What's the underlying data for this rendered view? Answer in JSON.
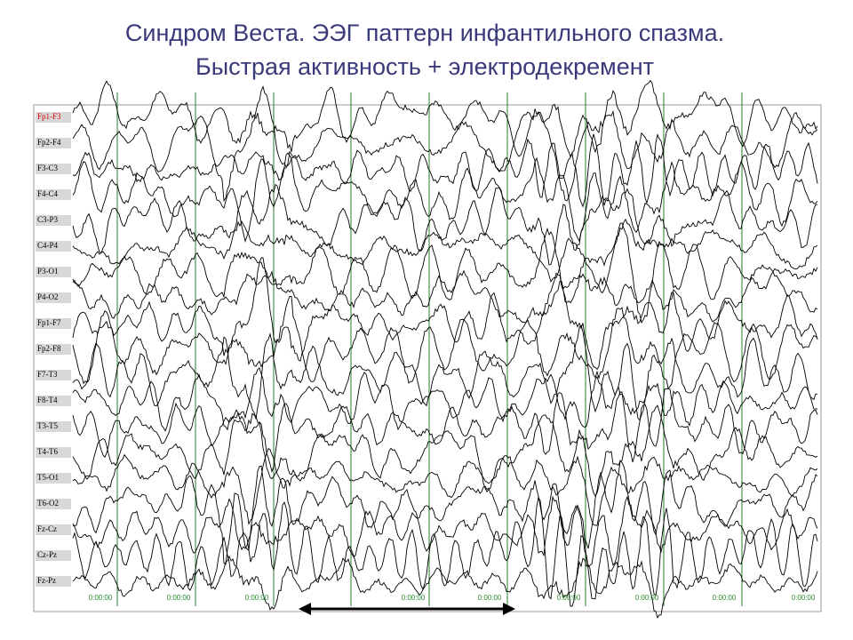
{
  "header": {
    "title_lines": [
      "Синдром Веста. ЭЭГ паттерн инфантильного спазма.",
      "Быстрая активность + электродекремент"
    ]
  },
  "eeg": {
    "channels": [
      "Fp1-F3",
      "Fp2-F4",
      "F3-C3",
      "F4-C4",
      "C3-P3",
      "C4-P4",
      "P3-O1",
      "P4-O2",
      "Fp1-F7",
      "Fp2-F8",
      "F7-T3",
      "F8-T4",
      "T3-T5",
      "T4-T6",
      "T5-O1",
      "T6-O2",
      "Fz-Cz",
      "Cz-Pz",
      "Fz-Pz"
    ],
    "time_labels": [
      "0:00:00",
      "0:00:00",
      "0:00:00",
      "0:00:00",
      "0:00:00",
      "0:00:00",
      "0:00:00",
      "0:00:00",
      "0:00:00"
    ]
  }
}
